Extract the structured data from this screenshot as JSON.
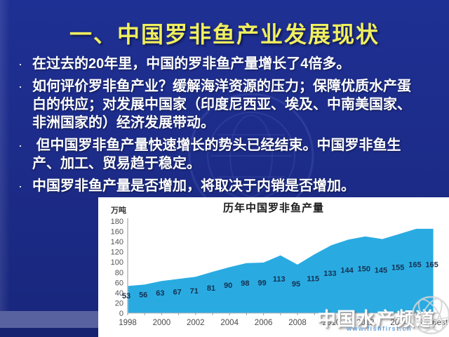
{
  "slide": {
    "title": "一、中国罗非鱼产业发展现状",
    "bullets": [
      "在过去的20年里，中国的罗非鱼产量增长了4倍多。",
      "如何评价罗非鱼产业？缓解海洋资源的压力；保障优质水产蛋白的供应；对发展中国家（印度尼西亚、埃及、中南美国家、非洲国家的）经济发展带动。",
      " 但中国罗非鱼产量快速增长的势头已经结束。中国罗非鱼生产、加工、贸易趋于稳定。",
      "中国罗非鱼产量是否增加，将取决于内销是否增加。"
    ],
    "bullet_glyph": "·"
  },
  "chart_data": {
    "type": "area",
    "title": "历年中国罗非鱼产量",
    "ylabel": "万吨",
    "categories": [
      "1998",
      "1999",
      "2000",
      "2001",
      "2002",
      "2003",
      "2004",
      "2005",
      "2006",
      "2007",
      "2008",
      "2009",
      "2010",
      "2011",
      "2012",
      "2013",
      "2014",
      "2015",
      "2016est"
    ],
    "values": [
      53,
      56,
      63,
      67,
      71,
      81,
      90,
      98,
      99,
      113,
      95,
      115,
      133,
      144,
      150,
      145,
      155,
      165,
      165
    ],
    "x_tick_labels": [
      "1998",
      "2000",
      "2002",
      "2004",
      "2006",
      "2008",
      "2010",
      "2012",
      "2014",
      "2016est"
    ],
    "ylim": [
      0,
      180
    ],
    "y_tick_step": 20,
    "grid": false,
    "legend": "none",
    "area_color": "#29abe2",
    "label_color": "#16304f",
    "axis_color": "#b8b8b8",
    "tick_text_color": "#4a4a4a"
  },
  "watermark": {
    "brand": "中国水产频道",
    "url": "www.fishfirst.cn"
  }
}
